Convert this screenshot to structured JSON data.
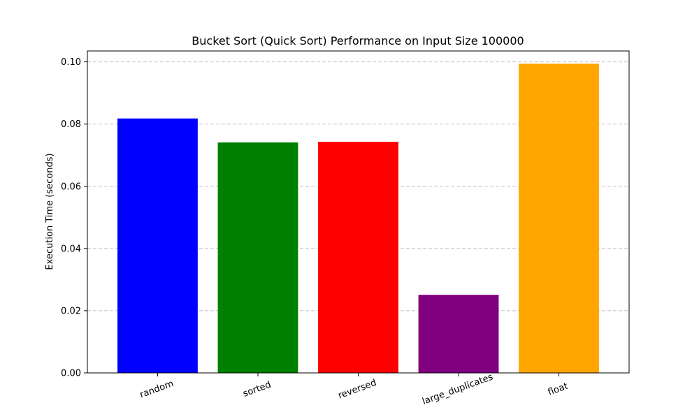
{
  "chart_data": {
    "type": "bar",
    "title": "Bucket Sort (Quick Sort) Performance on Input Size 100000",
    "xlabel": "",
    "ylabel": "Execution Time (seconds)",
    "categories": [
      "random",
      "sorted",
      "reversed",
      "large_duplicates",
      "float"
    ],
    "values": [
      0.0818,
      0.0741,
      0.0743,
      0.0251,
      0.0994
    ],
    "colors": [
      "#0000ff",
      "#008000",
      "#ff0000",
      "#800080",
      "#ffa500"
    ],
    "ylim": [
      0,
      0.1035
    ],
    "yticks": [
      0.0,
      0.02,
      0.04,
      0.06,
      0.08,
      0.1
    ],
    "ytick_labels": [
      "0.00",
      "0.02",
      "0.04",
      "0.06",
      "0.08",
      "0.10"
    ],
    "grid": "y-dashed",
    "xtick_rotation": 20
  }
}
